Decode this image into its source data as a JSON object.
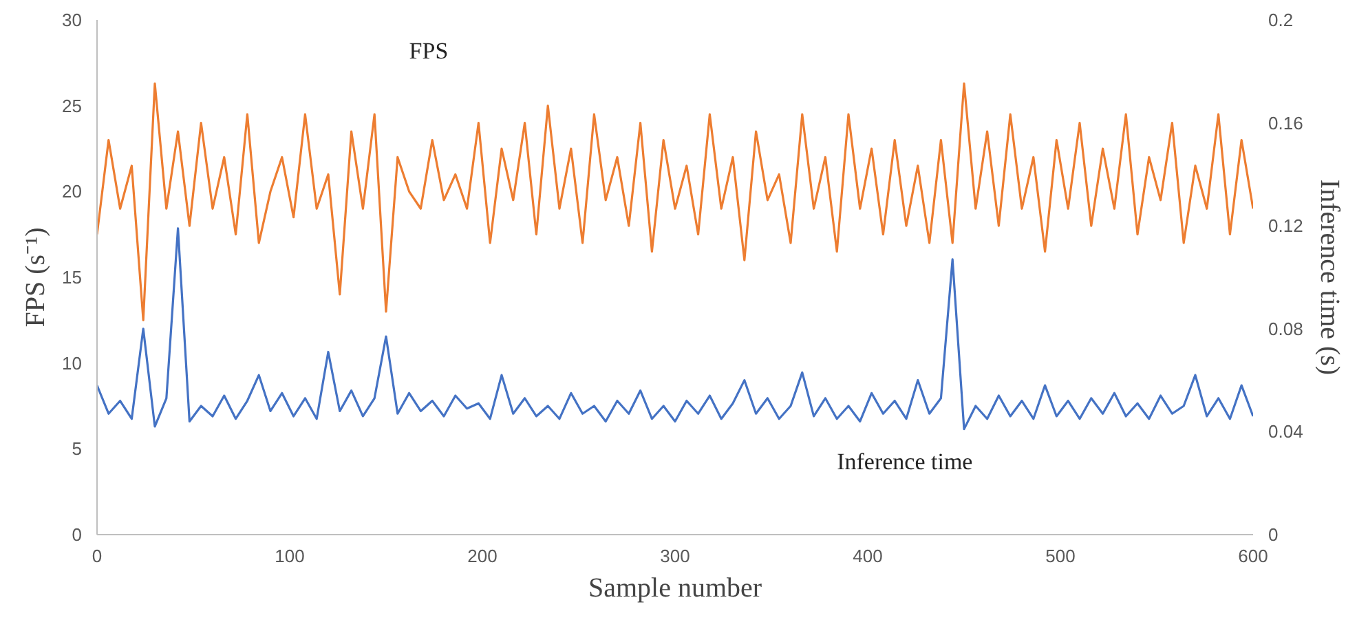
{
  "chart_data": {
    "type": "line",
    "xlabel": "Sample number",
    "ylabel": "FPS (s⁻¹)",
    "y2label": "Inference time (s)",
    "x": [
      0,
      6,
      12,
      18,
      24,
      30,
      36,
      42,
      48,
      54,
      60,
      66,
      72,
      78,
      84,
      90,
      96,
      102,
      108,
      114,
      120,
      126,
      132,
      138,
      144,
      150,
      156,
      162,
      168,
      174,
      180,
      186,
      192,
      198,
      204,
      210,
      216,
      222,
      228,
      234,
      240,
      246,
      252,
      258,
      264,
      270,
      276,
      282,
      288,
      294,
      300,
      306,
      312,
      318,
      324,
      330,
      336,
      342,
      348,
      354,
      360,
      366,
      372,
      378,
      384,
      390,
      396,
      402,
      408,
      414,
      420,
      426,
      432,
      438,
      444,
      450,
      456,
      462,
      468,
      474,
      480,
      486,
      492,
      498,
      504,
      510,
      516,
      522,
      528,
      534,
      540,
      546,
      552,
      558,
      564,
      570,
      576,
      582,
      588,
      594,
      600
    ],
    "series": [
      {
        "name": "FPS",
        "color": "#ed7d31",
        "values": [
          17.5,
          23,
          19,
          21.5,
          12.5,
          26.3,
          19,
          23.5,
          18,
          24,
          19,
          22,
          17.5,
          24.5,
          17,
          20,
          22,
          18.5,
          24.5,
          19,
          21,
          14,
          23.5,
          19,
          24.5,
          13,
          22,
          20,
          19,
          23,
          19.5,
          21,
          19,
          24,
          17,
          22.5,
          19.5,
          24,
          17.5,
          25,
          19,
          22.5,
          17,
          24.5,
          19.5,
          22,
          18,
          24,
          16.5,
          23,
          19,
          21.5,
          17.5,
          24.5,
          19,
          22,
          16,
          23.5,
          19.5,
          21,
          17,
          24.5,
          19,
          22,
          16.5,
          24.5,
          19,
          22.5,
          17.5,
          23,
          18,
          21.5,
          17,
          23,
          17,
          26.3,
          19,
          23.5,
          18,
          24.5,
          19,
          22,
          16.5,
          23,
          19,
          24,
          18,
          22.5,
          19,
          24.5,
          17.5,
          22,
          19.5,
          24,
          17,
          21.5,
          19,
          24.5,
          17.5,
          23,
          19
        ]
      },
      {
        "name": "Inference time",
        "color": "#4472c4",
        "axis": "y2",
        "values": [
          0.058,
          0.047,
          0.052,
          0.045,
          0.08,
          0.042,
          0.053,
          0.119,
          0.044,
          0.05,
          0.046,
          0.054,
          0.045,
          0.052,
          0.062,
          0.048,
          0.055,
          0.046,
          0.053,
          0.045,
          0.071,
          0.048,
          0.056,
          0.046,
          0.053,
          0.077,
          0.047,
          0.055,
          0.048,
          0.052,
          0.046,
          0.054,
          0.049,
          0.051,
          0.045,
          0.062,
          0.047,
          0.053,
          0.046,
          0.05,
          0.045,
          0.055,
          0.047,
          0.05,
          0.044,
          0.052,
          0.047,
          0.056,
          0.045,
          0.05,
          0.044,
          0.052,
          0.047,
          0.054,
          0.045,
          0.051,
          0.06,
          0.047,
          0.053,
          0.045,
          0.05,
          0.063,
          0.046,
          0.053,
          0.045,
          0.05,
          0.044,
          0.055,
          0.047,
          0.052,
          0.045,
          0.06,
          0.047,
          0.053,
          0.107,
          0.041,
          0.05,
          0.045,
          0.054,
          0.046,
          0.052,
          0.045,
          0.058,
          0.046,
          0.052,
          0.045,
          0.053,
          0.047,
          0.055,
          0.046,
          0.051,
          0.045,
          0.054,
          0.047,
          0.05,
          0.062,
          0.046,
          0.053,
          0.045,
          0.058,
          0.046
        ]
      }
    ],
    "xlim": [
      0,
      600
    ],
    "xticks": [
      0,
      100,
      200,
      300,
      400,
      500,
      600
    ],
    "ylim": [
      0,
      30
    ],
    "yticks": [
      0,
      5,
      10,
      15,
      20,
      25,
      30
    ],
    "y2lim": [
      0,
      0.2
    ],
    "y2ticks": [
      0,
      0.04,
      0.08,
      0.12,
      0.16,
      0.2
    ],
    "grid": false,
    "legend": false,
    "marker": "none",
    "line_style": "solid"
  }
}
